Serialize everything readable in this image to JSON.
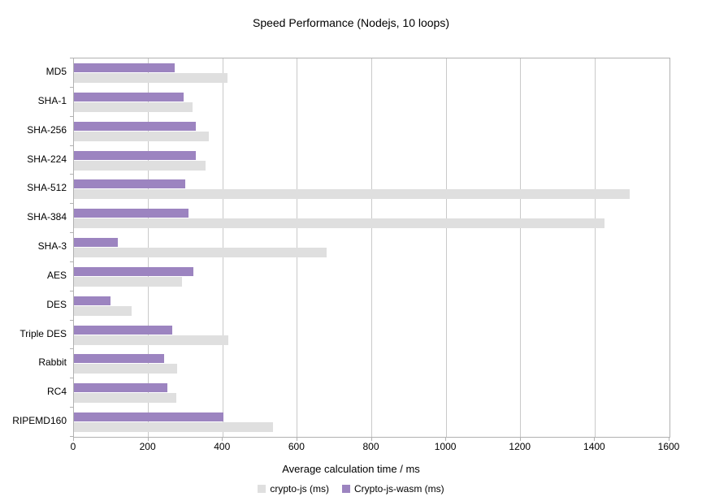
{
  "title": "Speed Performance (Nodejs, 10 loops)",
  "chart_data": {
    "type": "bar",
    "orientation": "horizontal",
    "title": "Speed Performance (Nodejs, 10 loops)",
    "xlabel": "Average calculation time / ms",
    "ylabel": "",
    "xlim": [
      0,
      1600
    ],
    "xticks": [
      0,
      200,
      400,
      600,
      800,
      1000,
      1200,
      1400,
      1600
    ],
    "grid": true,
    "legend_position": "bottom",
    "categories": [
      "MD5",
      "SHA-1",
      "SHA-256",
      "SHA-224",
      "SHA-512",
      "SHA-384",
      "SHA-3",
      "AES",
      "DES",
      "Triple DES",
      "Rabbit",
      "RC4",
      "RIPEMD160"
    ],
    "series": [
      {
        "name": "crypto-js (ms)",
        "color": "#dfdfdf",
        "values": [
          412,
          318,
          362,
          354,
          1494,
          1426,
          678,
          291,
          155,
          415,
          277,
          276,
          535
        ]
      },
      {
        "name": "Crypto-js-wasm (ms)",
        "color": "#9c84c0",
        "values": [
          270,
          295,
          328,
          328,
          298,
          307,
          118,
          320,
          98,
          264,
          242,
          250,
          401
        ]
      }
    ],
    "bar_row_order": [
      "Crypto-js-wasm (ms)",
      "crypto-js (ms)"
    ]
  },
  "colors": {
    "background": "#ffffff",
    "plot_border": "#b2b2b2",
    "gridline": "#c9c9c9",
    "text": "#000000"
  }
}
